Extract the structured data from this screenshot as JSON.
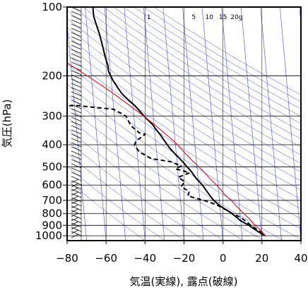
{
  "chart_data": {
    "type": "line",
    "subtype": "skew-t log-p diagram",
    "xlabel": "気温(実線), 露点(破線)",
    "ylabel": "気圧(hPa)",
    "x_ticks": [
      "−80",
      "−60",
      "−40",
      "−20",
      "0",
      "20",
      "40"
    ],
    "x_tick_values": [
      -80,
      -60,
      -40,
      -20,
      0,
      20,
      40
    ],
    "y_ticks": [
      "100",
      "200",
      "300",
      "400",
      "500",
      "600",
      "700",
      "800",
      "900",
      "1000"
    ],
    "y_tick_values": [
      100,
      200,
      300,
      400,
      500,
      600,
      700,
      800,
      900,
      1000
    ],
    "xlim": [
      -80,
      40
    ],
    "ylim_pressure": [
      1050,
      100
    ],
    "y_scale": "log",
    "grid": true,
    "mixing_ratio_labels": [
      "1",
      "5",
      "10",
      "15",
      "20g"
    ],
    "mixing_ratio_label_values": [
      1,
      5,
      10,
      15,
      20
    ],
    "series": [
      {
        "role": "temperature",
        "line": "solid",
        "color": "#000000",
        "points": [
          [
            -56,
            100
          ],
          [
            -56,
            110
          ],
          [
            -55,
            120
          ],
          [
            -54,
            130
          ],
          [
            -53,
            145
          ],
          [
            -52,
            165
          ],
          [
            -51,
            180
          ],
          [
            -51,
            190
          ],
          [
            -50,
            200
          ],
          [
            -49,
            210
          ],
          [
            -47,
            225
          ],
          [
            -45,
            240
          ],
          [
            -42,
            255
          ],
          [
            -39,
            270
          ],
          [
            -36,
            290
          ],
          [
            -34,
            305
          ],
          [
            -31,
            325
          ],
          [
            -29,
            345
          ],
          [
            -27,
            365
          ],
          [
            -25,
            390
          ],
          [
            -23,
            415
          ],
          [
            -20,
            445
          ],
          [
            -17,
            475
          ],
          [
            -15,
            500
          ],
          [
            -13,
            525
          ],
          [
            -11,
            560
          ],
          [
            -8,
            600
          ],
          [
            -6,
            640
          ],
          [
            -4,
            680
          ],
          [
            -3,
            700
          ],
          [
            0,
            740
          ],
          [
            5,
            790
          ],
          [
            8,
            830
          ],
          [
            10,
            860
          ],
          [
            12,
            880
          ],
          [
            14,
            900
          ],
          [
            17,
            940
          ],
          [
            20,
            980
          ],
          [
            22,
            1000
          ]
        ]
      },
      {
        "role": "dewpoint",
        "line": "dashed",
        "color": "#000000",
        "points": [
          [
            -80,
            270
          ],
          [
            -68,
            270
          ],
          [
            -50,
            280
          ],
          [
            -44,
            300
          ],
          [
            -42,
            330
          ],
          [
            -38,
            355
          ],
          [
            -35,
            360
          ],
          [
            -40,
            385
          ],
          [
            -41,
            400
          ],
          [
            -39,
            430
          ],
          [
            -33,
            460
          ],
          [
            -23,
            475
          ],
          [
            -18,
            495
          ],
          [
            -21,
            510
          ],
          [
            -14,
            530
          ],
          [
            -20,
            555
          ],
          [
            -17,
            580
          ],
          [
            -19,
            610
          ],
          [
            -15,
            640
          ],
          [
            -16,
            670
          ],
          [
            -8,
            700
          ],
          [
            -2,
            730
          ],
          [
            3,
            770
          ],
          [
            6,
            800
          ],
          [
            10,
            830
          ],
          [
            13,
            870
          ],
          [
            15,
            900
          ],
          [
            18,
            940
          ],
          [
            21,
            980
          ],
          [
            22,
            1000
          ]
        ]
      },
      {
        "role": "parcel",
        "line": "solid",
        "color": "#e0182d",
        "points": [
          [
            -80,
            160
          ],
          [
            -72,
            175
          ],
          [
            -62,
            200
          ],
          [
            -52,
            230
          ],
          [
            -44,
            260
          ],
          [
            -37,
            290
          ],
          [
            -31,
            320
          ],
          [
            -26,
            350
          ],
          [
            -20,
            390
          ],
          [
            -16,
            430
          ],
          [
            -12,
            470
          ],
          [
            -8,
            510
          ],
          [
            -4,
            560
          ],
          [
            0,
            610
          ],
          [
            3,
            660
          ],
          [
            6,
            700
          ],
          [
            9,
            750
          ],
          [
            12,
            800
          ],
          [
            15,
            850
          ],
          [
            17,
            900
          ],
          [
            20,
            950
          ],
          [
            22,
            1000
          ]
        ]
      }
    ]
  }
}
